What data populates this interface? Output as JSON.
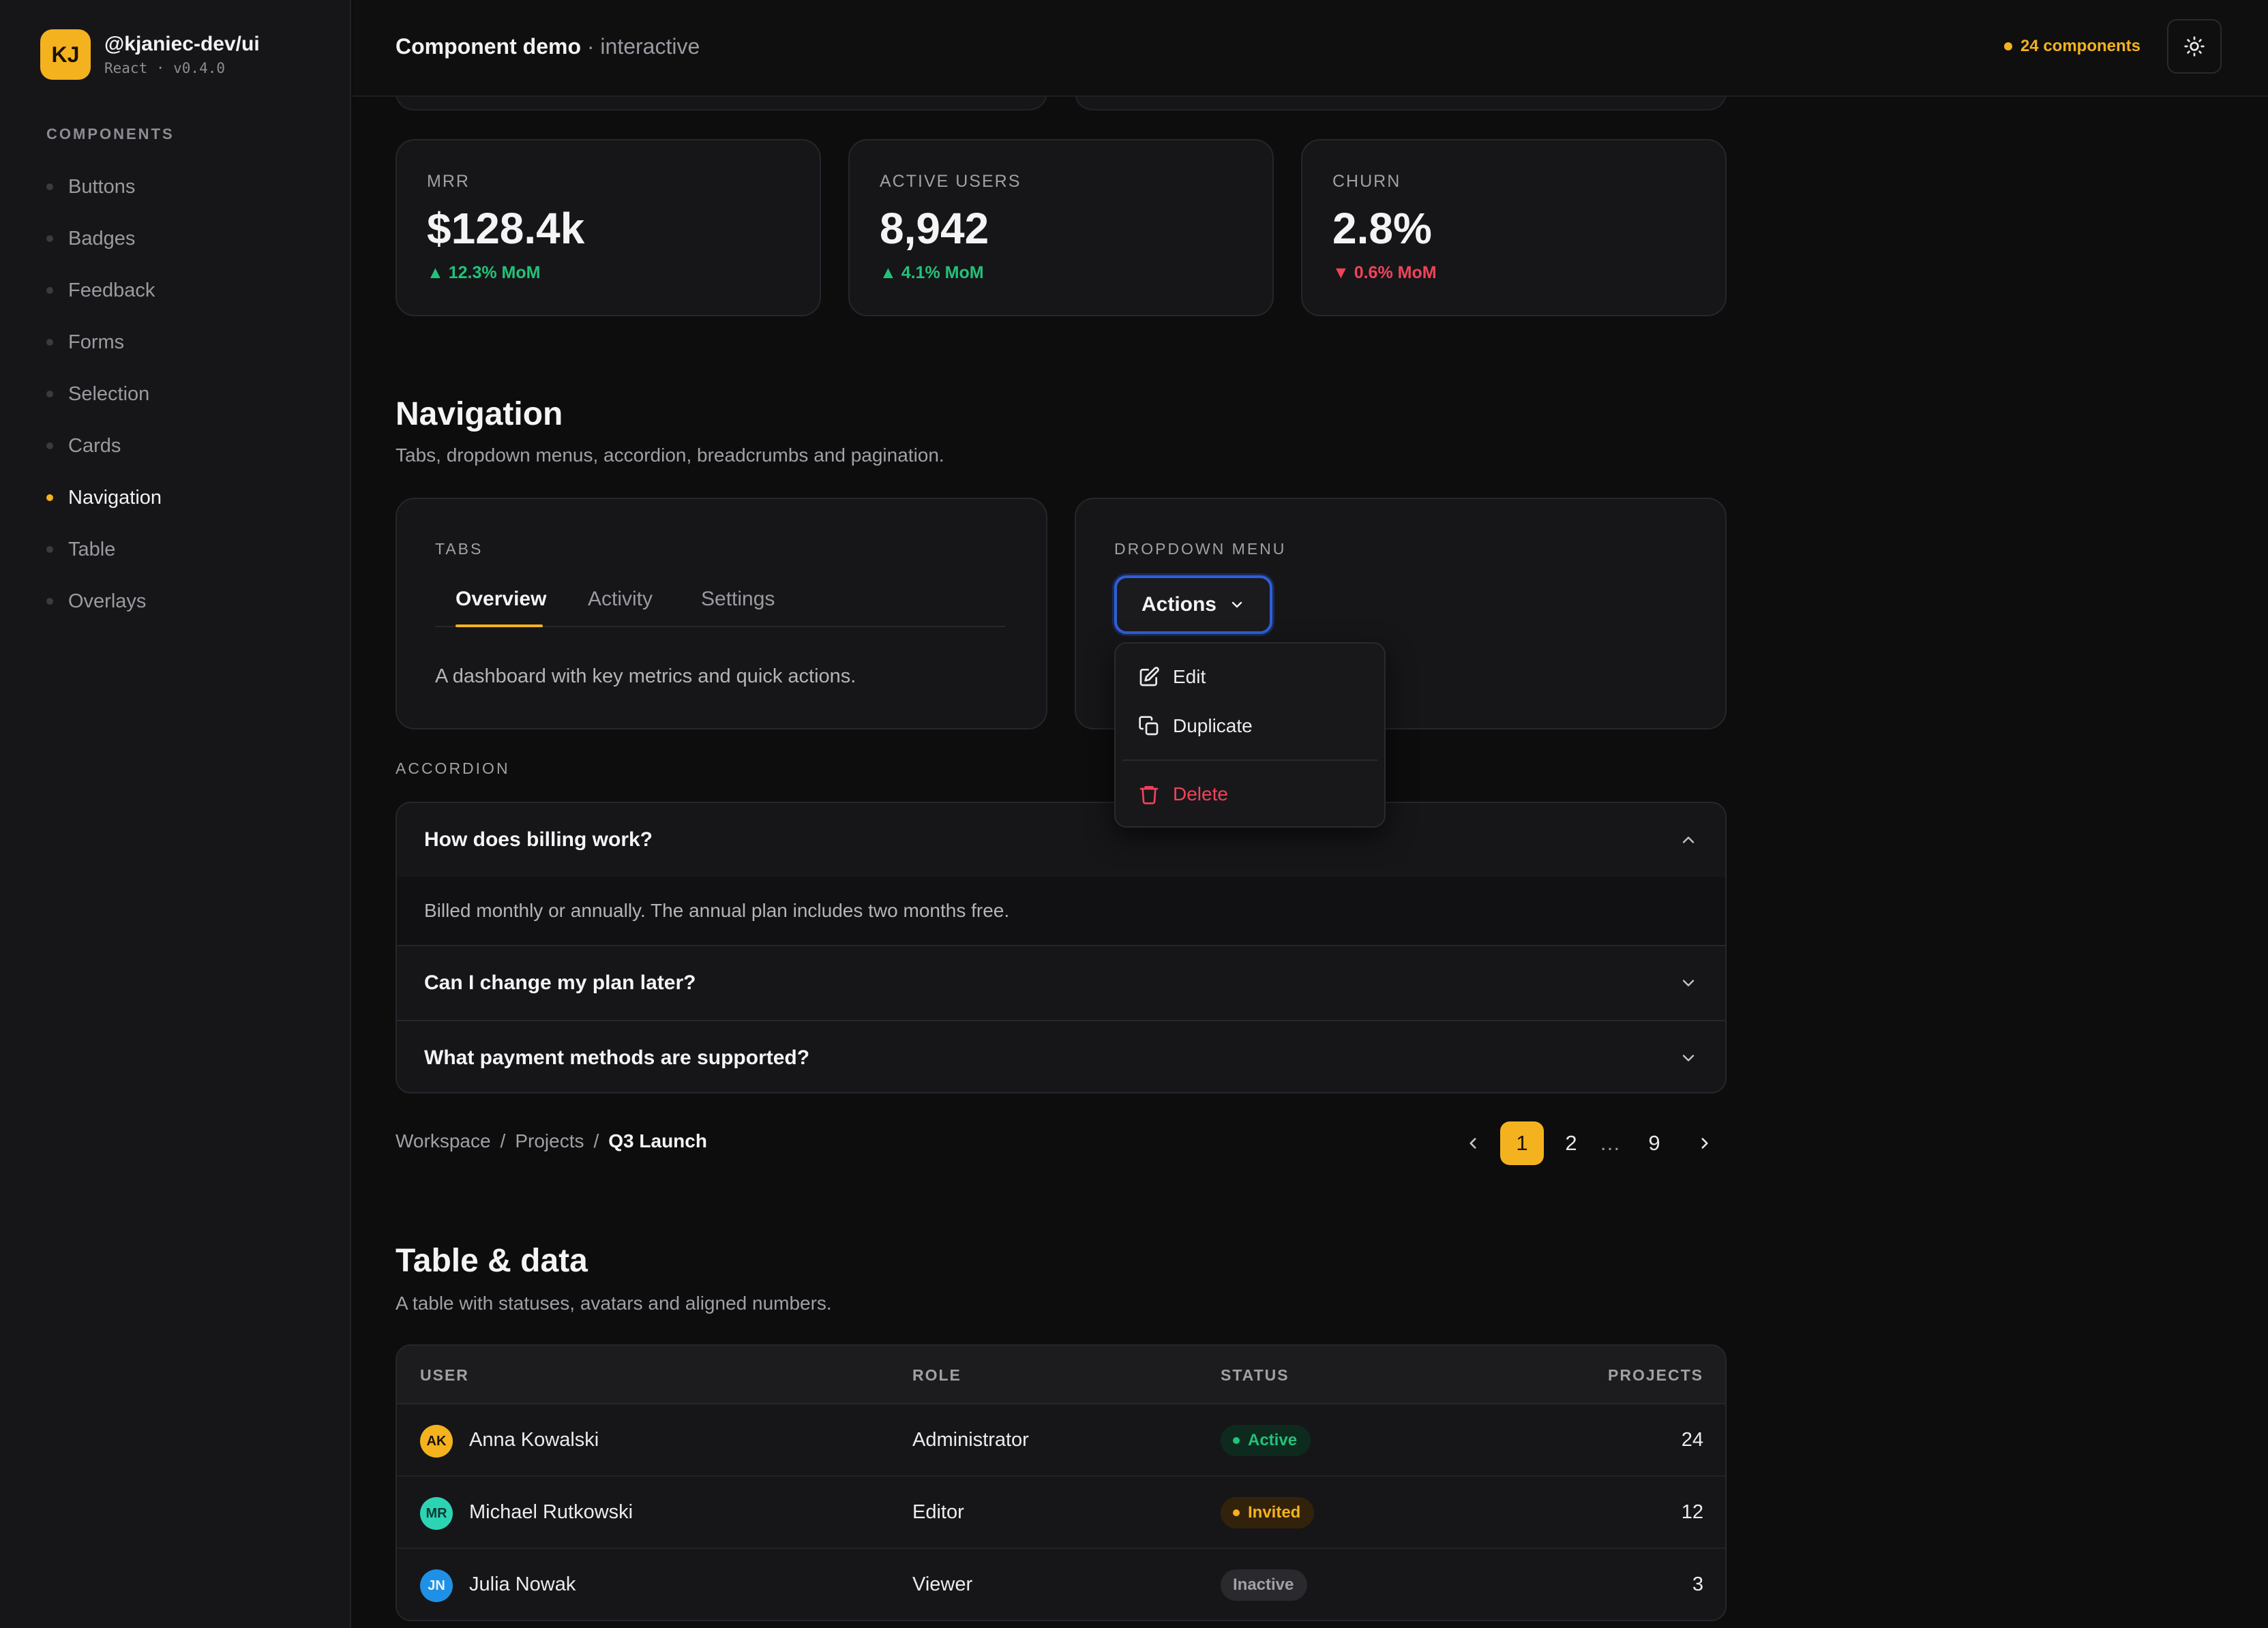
{
  "brand": {
    "initials": "KJ",
    "name": "@kjaniec-dev/ui",
    "version": "React · v0.4.0",
    "accent": "#f5b21f"
  },
  "sidebar": {
    "heading": "COMPONENTS",
    "items": [
      {
        "label": "Buttons"
      },
      {
        "label": "Badges"
      },
      {
        "label": "Feedback"
      },
      {
        "label": "Forms"
      },
      {
        "label": "Selection"
      },
      {
        "label": "Cards"
      },
      {
        "label": "Navigation",
        "active": true
      },
      {
        "label": "Table"
      },
      {
        "label": "Overlays"
      }
    ]
  },
  "topbar": {
    "title": "Component demo",
    "subtitle": "· interactive",
    "count": "24 components",
    "theme_icon": "sun-icon"
  },
  "stats": [
    {
      "label": "MRR",
      "value": "$128.4k",
      "delta": "▲ 12.3% MoM",
      "trend": "up"
    },
    {
      "label": "ACTIVE USERS",
      "value": "8,942",
      "delta": "▲ 4.1% MoM",
      "trend": "up"
    },
    {
      "label": "CHURN",
      "value": "2.8%",
      "delta": "▼ 0.6% MoM",
      "trend": "down"
    }
  ],
  "navigation": {
    "title": "Navigation",
    "description": "Tabs, dropdown menus, accordion, breadcrumbs and pagination.",
    "tabs": {
      "label": "TABS",
      "items": [
        {
          "label": "Overview",
          "active": true
        },
        {
          "label": "Activity"
        },
        {
          "label": "Settings"
        }
      ],
      "content": "A dashboard with key metrics and quick actions."
    },
    "dropdown": {
      "label": "DROPDOWN MENU",
      "button": "Actions",
      "items": [
        {
          "label": "Edit",
          "icon": "edit-icon"
        },
        {
          "label": "Duplicate",
          "icon": "copy-icon"
        },
        {
          "label": "Delete",
          "icon": "trash-icon",
          "danger": true
        }
      ]
    },
    "accordion": {
      "label": "ACCORDION",
      "items": [
        {
          "question": "How does billing work?",
          "answer": "Billed monthly or annually. The annual plan includes two months free.",
          "open": true
        },
        {
          "question": "Can I change my plan later?"
        },
        {
          "question": "What payment methods are supported?"
        }
      ]
    },
    "breadcrumb": [
      "Workspace",
      "Projects",
      "Q3 Launch"
    ],
    "pagination": {
      "pages": [
        "1",
        "2",
        "…",
        "9"
      ],
      "current": "1"
    }
  },
  "table_section": {
    "title": "Table & data",
    "description": "A table with statuses, avatars and aligned numbers.",
    "columns": [
      "USER",
      "ROLE",
      "STATUS",
      "PROJECTS"
    ],
    "rows": [
      {
        "initials": "AK",
        "name": "Anna Kowalski",
        "role": "Administrator",
        "status": "Active",
        "projects": "24",
        "avatar_color": "#f5b21f"
      },
      {
        "initials": "MR",
        "name": "Michael Rutkowski",
        "role": "Editor",
        "status": "Invited",
        "projects": "12",
        "avatar_color": "#2dd4b4"
      },
      {
        "initials": "JN",
        "name": "Julia Nowak",
        "role": "Viewer",
        "status": "Inactive",
        "projects": "3",
        "avatar_color": "#1e90e6"
      }
    ]
  }
}
